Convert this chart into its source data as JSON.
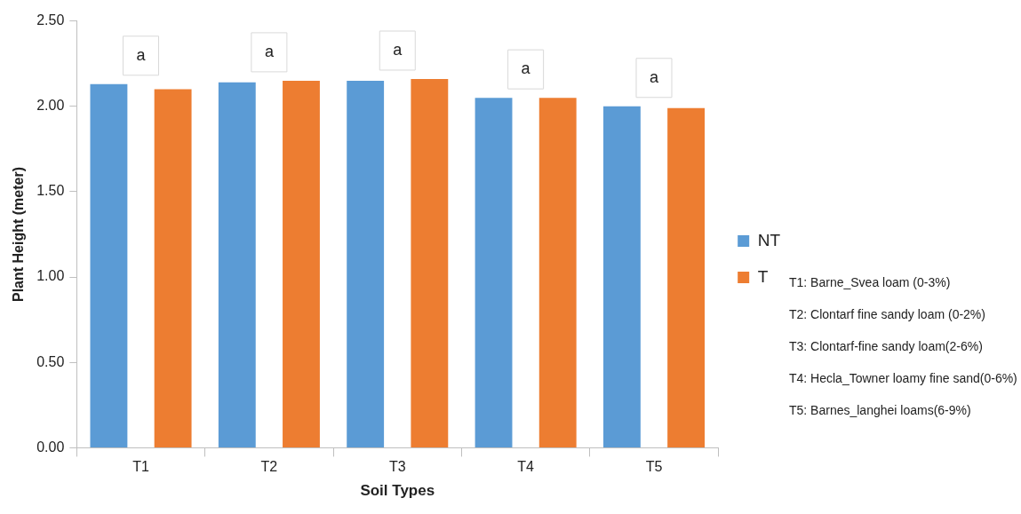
{
  "chart_data": {
    "type": "bar",
    "xlabel": "Soil Types",
    "ylabel": "Plant Height (meter)",
    "categories": [
      "T1",
      "T2",
      "T3",
      "T4",
      "T5"
    ],
    "series": [
      {
        "name": "NT",
        "color": "#5b9bd5",
        "values": [
          2.13,
          2.14,
          2.15,
          2.05,
          2.0
        ]
      },
      {
        "name": "T",
        "color": "#ed7d31",
        "values": [
          2.1,
          2.15,
          2.16,
          2.05,
          1.99
        ]
      }
    ],
    "ylim": [
      0,
      2.5
    ],
    "yticks": [
      {
        "value": 0,
        "label": "0.00"
      },
      {
        "value": 0.5,
        "label": "0.50"
      },
      {
        "value": 1,
        "label": "1.00"
      },
      {
        "value": 1.5,
        "label": "1.50"
      },
      {
        "value": 2,
        "label": "2.00"
      },
      {
        "value": 2.5,
        "label": "2.50"
      }
    ],
    "grid": false,
    "legend": "right",
    "annotations": [
      "a",
      "a",
      "a",
      "a",
      "a",
      "T1: Barne_Svea loam (0-3%)",
      "T2: Clontarf fine sandy loam (0-2%)",
      "T3: Clontarf-fine sandy loam(2-6%)",
      "T4: Hecla_Towner loamy fine sand(0-6%)",
      "T5: Barnes_langhei loams(6-9%)"
    ]
  }
}
